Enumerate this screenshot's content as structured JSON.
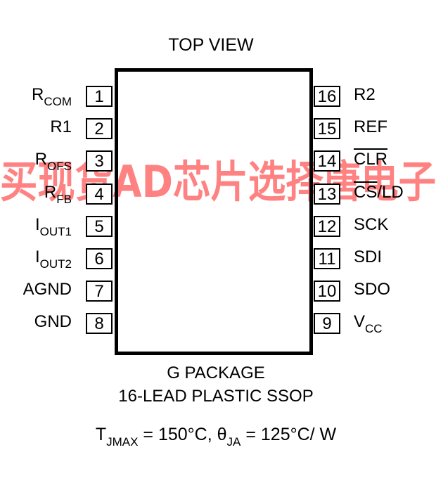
{
  "title": "TOP VIEW",
  "left_pins": [
    {
      "number": "1",
      "name": "R",
      "sub": "COM"
    },
    {
      "number": "2",
      "name": "R1",
      "sub": ""
    },
    {
      "number": "3",
      "name": "R",
      "sub": "OFS"
    },
    {
      "number": "4",
      "name": "R",
      "sub": "FB"
    },
    {
      "number": "5",
      "name": "I",
      "sub": "OUT1"
    },
    {
      "number": "6",
      "name": "I",
      "sub": "OUT2"
    },
    {
      "number": "7",
      "name": "AGND",
      "sub": ""
    },
    {
      "number": "8",
      "name": "GND",
      "sub": ""
    }
  ],
  "right_pins": [
    {
      "number": "16",
      "name": "R2",
      "sub": ""
    },
    {
      "number": "15",
      "name": "REF",
      "sub": ""
    },
    {
      "number": "14",
      "name": "CLR",
      "sub": "",
      "overline": "CLR"
    },
    {
      "number": "13",
      "name": "CS/LD",
      "sub": "",
      "overline": "CS"
    },
    {
      "number": "12",
      "name": "SCK",
      "sub": ""
    },
    {
      "number": "11",
      "name": "SDI",
      "sub": ""
    },
    {
      "number": "10",
      "name": "SDO",
      "sub": ""
    },
    {
      "number": "9",
      "name": "V",
      "sub": "CC"
    }
  ],
  "package_line1": "G PACKAGE",
  "package_line2": "16-LEAD PLASTIC SSOP",
  "thermal": {
    "t_symbol": "T",
    "t_sub": "JMAX",
    "t_value": " = 150°C, ",
    "theta_symbol": "θ",
    "theta_sub": "JA",
    "theta_value": " = 125°C/ W"
  },
  "watermark_text": "买现货AD芯片选择唐电子",
  "watermark_color": "#ff4d4d"
}
